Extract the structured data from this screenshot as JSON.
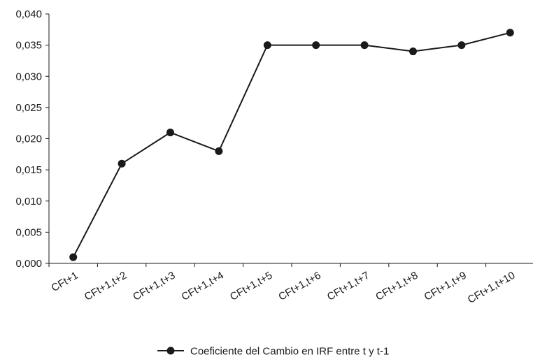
{
  "chart_data": {
    "type": "line",
    "title": "",
    "xlabel": "",
    "ylabel": "",
    "categories": [
      "CFt+1",
      "CFt+1,t+2",
      "CFt+1,t+3",
      "CFt+1,t+4",
      "CFt+1,t+5",
      "CFt+1,t+6",
      "CFt+1,t+7",
      "CFt+1,t+8",
      "CFt+1,t+9",
      "CFt+1,t+10"
    ],
    "series": [
      {
        "name": "Coeficiente del Cambio en IRF entre t y t-1",
        "values": [
          0.001,
          0.016,
          0.021,
          0.018,
          0.035,
          0.035,
          0.035,
          0.034,
          0.035,
          0.037
        ],
        "color": "#1a1a1a"
      }
    ],
    "ylim": [
      0,
      0.04
    ],
    "yticks": [
      0,
      0.005,
      0.01,
      0.015,
      0.02,
      0.025,
      0.03,
      0.035,
      0.04
    ],
    "ytick_labels": [
      "0,000",
      "0,005",
      "0,010",
      "0,015",
      "0,020",
      "0,025",
      "0,030",
      "0,035",
      "0,040"
    ],
    "grid": false,
    "legend_position": "bottom-center"
  }
}
